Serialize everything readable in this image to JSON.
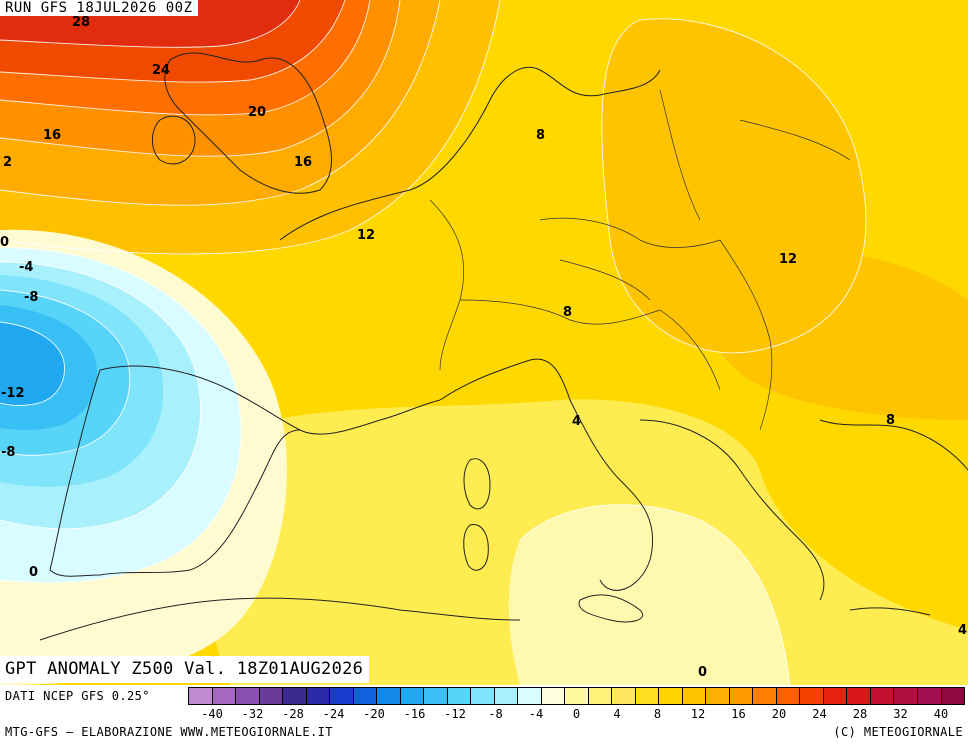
{
  "header": {
    "run_label": "RUN GFS 18JUL2026 00Z"
  },
  "title": {
    "text": "GPT ANOMALY Z500 Val. 18Z01AUG2026"
  },
  "footer": {
    "source": "DATI NCEP GFS 0.25°",
    "credit": "MTG-GFS – ELABORAZIONE WWW.METEOGIORNALE.IT",
    "copyright": "(C) METEOGIORNALE"
  },
  "legend": {
    "ticks": [
      "-40",
      "-32",
      "-28",
      "-24",
      "-20",
      "-16",
      "-12",
      "-8",
      "-4",
      "0",
      "4",
      "8",
      "12",
      "16",
      "20",
      "24",
      "28",
      "32",
      "40"
    ],
    "colors": [
      "#c28ad2",
      "#a667c2",
      "#8a4fb0",
      "#6a3a9a",
      "#3a2a90",
      "#2a2aa8",
      "#1a3ad0",
      "#1060e0",
      "#1488e8",
      "#20a8f0",
      "#38c0f4",
      "#58d4f8",
      "#80e4fa",
      "#a8f0fc",
      "#d8fcff",
      "#ffffe0",
      "#fffaa0",
      "#fff27a",
      "#ffe860",
      "#ffde20",
      "#ffd400",
      "#ffc400",
      "#ffb000",
      "#ff9c00",
      "#ff8000",
      "#ff6000",
      "#f44000",
      "#e82010",
      "#d81818",
      "#c41030",
      "#b01040",
      "#a01050",
      "#900a40"
    ]
  },
  "contour_labels": [
    {
      "id": "c28",
      "text": "28"
    },
    {
      "id": "c24",
      "text": "24"
    },
    {
      "id": "c20",
      "text": "20"
    },
    {
      "id": "c16a",
      "text": "16"
    },
    {
      "id": "c16b",
      "text": "16"
    },
    {
      "id": "c12a",
      "text": "12"
    },
    {
      "id": "c2",
      "text": "2"
    },
    {
      "id": "c0a",
      "text": "0"
    },
    {
      "id": "c8a",
      "text": "8"
    },
    {
      "id": "c12b",
      "text": "12"
    },
    {
      "id": "c8b",
      "text": "8"
    },
    {
      "id": "c4a",
      "text": "4"
    },
    {
      "id": "c8c",
      "text": "8"
    },
    {
      "id": "c4b",
      "text": "4"
    },
    {
      "id": "c0b",
      "text": "0"
    },
    {
      "id": "c0c",
      "text": "0"
    },
    {
      "id": "cm4",
      "text": "-4"
    },
    {
      "id": "cm8a",
      "text": "-8"
    },
    {
      "id": "cm12",
      "text": "-12"
    },
    {
      "id": "cm8b",
      "text": "-8"
    }
  ]
}
